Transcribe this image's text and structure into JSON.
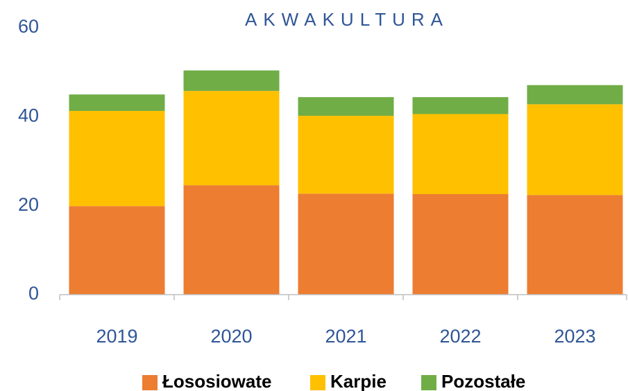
{
  "chart_data": {
    "type": "stacked_bar",
    "title": "AKWAKULTURA",
    "categories": [
      "2019",
      "2020",
      "2021",
      "2022",
      "2023"
    ],
    "series": [
      {
        "name": "Łososiowate",
        "color": "#ed7d31",
        "values": [
          19.9,
          24.6,
          22.7,
          22.6,
          22.4
        ]
      },
      {
        "name": "Karpie",
        "color": "#ffc000",
        "values": [
          21.4,
          21.2,
          17.5,
          18.0,
          20.4
        ]
      },
      {
        "name": "Pozostałe",
        "color": "#70ad47",
        "values": [
          3.7,
          4.6,
          4.2,
          3.8,
          4.3
        ]
      }
    ],
    "ylim": [
      0,
      60
    ],
    "yticks": [
      0,
      20,
      40,
      60
    ],
    "grid": false,
    "legend": "bottom"
  }
}
